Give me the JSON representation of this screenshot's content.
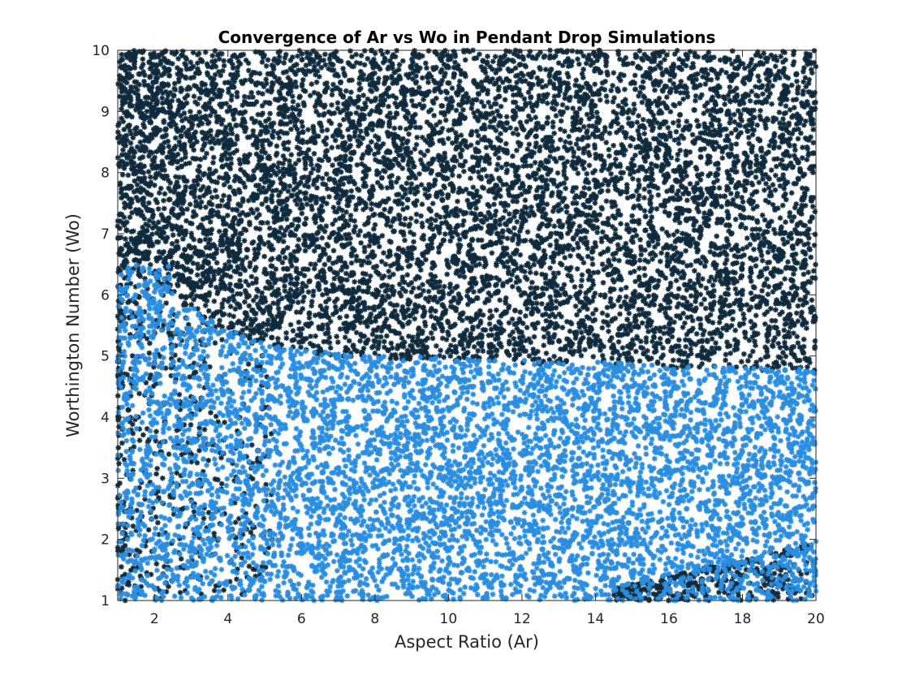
{
  "chart_data": {
    "type": "scatter",
    "title": "Convergence of Ar vs Wo in Pendant Drop Simulations",
    "xlabel": "Aspect Ratio (Ar)",
    "ylabel": "Worthington Number (Wo)",
    "xlim": [
      1,
      20
    ],
    "ylim": [
      1,
      10
    ],
    "xticks": [
      2,
      4,
      6,
      8,
      10,
      12,
      14,
      16,
      18,
      20
    ],
    "yticks": [
      1,
      2,
      3,
      4,
      5,
      6,
      7,
      8,
      9,
      10
    ],
    "xtick_labels": [
      "2",
      "4",
      "6",
      "8",
      "10",
      "12",
      "14",
      "16",
      "18",
      "20"
    ],
    "ytick_labels": [
      "1",
      "2",
      "3",
      "4",
      "5",
      "6",
      "7",
      "8",
      "9",
      "10"
    ],
    "grid": false,
    "legend": "none",
    "marker": "*",
    "series": [
      {
        "color": "#0e2a3c",
        "approx_point_count": 9000,
        "region": "Wo above a boundary that falls from about 6.6 at Ar=1 to about 5.0 near Ar=7-10 and about 4.8 at Ar=20; additional scattered points at low Ar (1-5) down to Wo=1, and near the bottom right (Ar 14.5-20, Wo 1-1.8)",
        "boundary": {
          "ar": [
            1,
            1.5,
            2,
            2.5,
            3,
            4,
            5,
            6,
            7,
            8,
            10,
            12,
            14,
            16,
            18,
            20
          ],
          "wo": [
            6.55,
            6.45,
            6.3,
            6.0,
            5.8,
            5.45,
            5.2,
            5.1,
            5.05,
            5.0,
            4.97,
            4.93,
            4.9,
            4.86,
            4.82,
            4.78
          ]
        }
      },
      {
        "color": "#2a8de0",
        "approx_point_count": 6000,
        "region": "Wo between 1 and the boundary (about 5 across most Ar), denser and extending to about 6.5 at Ar 1-2.5"
      }
    ]
  }
}
